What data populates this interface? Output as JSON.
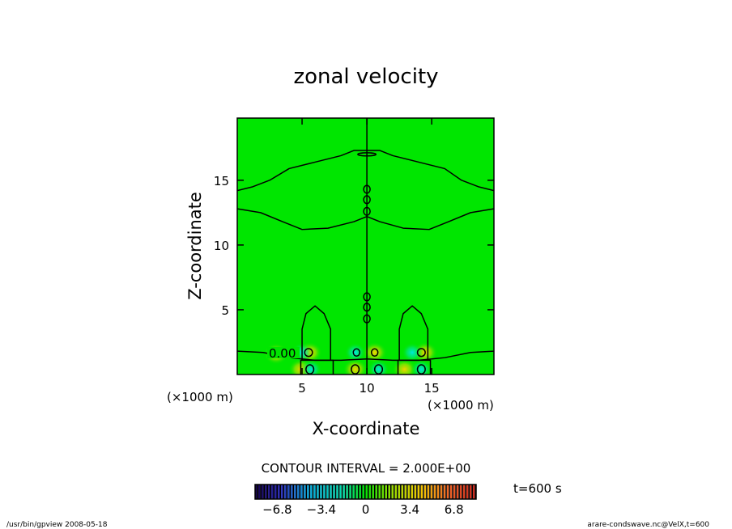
{
  "chart_data": {
    "type": "contour",
    "title": "zonal velocity",
    "xlabel": "X-coordinate",
    "ylabel": "Z-coordinate",
    "x_unit": "(×1000 m)",
    "y_unit": "(×1000 m)",
    "xlim": [
      0,
      19.8
    ],
    "ylim": [
      0,
      19.8
    ],
    "xticks": [
      5,
      10,
      15
    ],
    "yticks": [
      5,
      10,
      15
    ],
    "contour_interval_text": "CONTOUR INTERVAL = 2.000E+00",
    "time_text": "t=600 s",
    "contour_label": "0.00",
    "colorbar": {
      "min": -8.5,
      "max": 8.5,
      "ticks": [
        "−6.8",
        "−3.4",
        "0",
        "3.4",
        "6.8"
      ],
      "tick_values": [
        -6.8,
        -3.4,
        0,
        3.4,
        6.8
      ]
    },
    "zero_contours": [
      {
        "name": "upper-boundary",
        "points": [
          [
            0,
            14.2
          ],
          [
            1.2,
            14.5
          ],
          [
            2.5,
            15.0
          ],
          [
            4.0,
            15.9
          ],
          [
            6.0,
            16.4
          ],
          [
            8.0,
            16.9
          ],
          [
            9.0,
            17.3
          ],
          [
            11.0,
            17.3
          ],
          [
            12.0,
            16.9
          ],
          [
            14.0,
            16.4
          ],
          [
            16.0,
            15.9
          ],
          [
            17.3,
            15.0
          ],
          [
            18.6,
            14.5
          ],
          [
            19.8,
            14.2
          ]
        ]
      },
      {
        "name": "lower-boundary",
        "points": [
          [
            0,
            12.8
          ],
          [
            1.8,
            12.5
          ],
          [
            3.5,
            11.8
          ],
          [
            5.0,
            11.2
          ],
          [
            7.0,
            11.3
          ],
          [
            9.0,
            11.8
          ],
          [
            10.0,
            12.2
          ],
          [
            11.0,
            11.8
          ],
          [
            12.8,
            11.3
          ],
          [
            14.8,
            11.2
          ],
          [
            16.3,
            11.8
          ],
          [
            18.0,
            12.5
          ],
          [
            19.8,
            12.8
          ]
        ]
      },
      {
        "name": "center-line",
        "points": [
          [
            10,
            0
          ],
          [
            10,
            19.8
          ]
        ]
      },
      {
        "name": "bottom-layer",
        "points": [
          [
            0,
            1.8
          ],
          [
            2.0,
            1.7
          ],
          [
            4.0,
            1.3
          ],
          [
            6.0,
            1.1
          ],
          [
            8.0,
            1.1
          ],
          [
            10.0,
            1.2
          ],
          [
            12.0,
            1.1
          ],
          [
            14.0,
            1.1
          ],
          [
            16.0,
            1.3
          ],
          [
            18.0,
            1.7
          ],
          [
            19.8,
            1.8
          ]
        ]
      },
      {
        "name": "left-dome",
        "points": [
          [
            5.0,
            1.1
          ],
          [
            5.0,
            3.5
          ],
          [
            5.3,
            4.7
          ],
          [
            6.0,
            5.3
          ],
          [
            6.7,
            4.7
          ],
          [
            7.2,
            3.5
          ],
          [
            7.2,
            1.1
          ]
        ]
      },
      {
        "name": "right-dome",
        "points": [
          [
            12.5,
            1.1
          ],
          [
            12.5,
            3.5
          ],
          [
            12.8,
            4.7
          ],
          [
            13.5,
            5.3
          ],
          [
            14.2,
            4.7
          ],
          [
            14.7,
            3.5
          ],
          [
            14.7,
            1.1
          ]
        ]
      },
      {
        "name": "left-cell",
        "points": [
          [
            4.9,
            0
          ],
          [
            4.9,
            1.1
          ],
          [
            7.4,
            1.1
          ],
          [
            7.4,
            0
          ]
        ]
      },
      {
        "name": "right-cell",
        "points": [
          [
            12.4,
            0
          ],
          [
            12.4,
            1.1
          ],
          [
            14.9,
            1.1
          ],
          [
            14.9,
            0
          ]
        ]
      }
    ],
    "closed_contours": [
      {
        "x": 10.0,
        "y": 17.0,
        "rx": 0.7,
        "ry": 0.12
      },
      {
        "x": 10.0,
        "y": 14.3,
        "rx": 0.25,
        "ry": 0.3
      },
      {
        "x": 10.0,
        "y": 13.5,
        "rx": 0.25,
        "ry": 0.3
      },
      {
        "x": 10.0,
        "y": 12.6,
        "rx": 0.25,
        "ry": 0.3
      },
      {
        "x": 10.0,
        "y": 6.0,
        "rx": 0.25,
        "ry": 0.3
      },
      {
        "x": 10.0,
        "y": 5.2,
        "rx": 0.25,
        "ry": 0.3
      },
      {
        "x": 10.0,
        "y": 4.3,
        "rx": 0.25,
        "ry": 0.3
      },
      {
        "x": 5.5,
        "y": 1.7,
        "rx": 0.3,
        "ry": 0.3
      },
      {
        "x": 9.2,
        "y": 1.7,
        "rx": 0.25,
        "ry": 0.28
      },
      {
        "x": 10.6,
        "y": 1.7,
        "rx": 0.25,
        "ry": 0.28
      },
      {
        "x": 14.2,
        "y": 1.7,
        "rx": 0.3,
        "ry": 0.3
      },
      {
        "x": 2.8,
        "y": 1.7,
        "rx": 0.2,
        "ry": 0.2
      },
      {
        "x": 9.1,
        "y": 0.4,
        "rx": 0.3,
        "ry": 0.35
      },
      {
        "x": 10.9,
        "y": 0.4,
        "rx": 0.3,
        "ry": 0.35
      },
      {
        "x": 5.6,
        "y": 0.4,
        "rx": 0.3,
        "ry": 0.35
      },
      {
        "x": 14.2,
        "y": 0.4,
        "rx": 0.3,
        "ry": 0.35
      }
    ],
    "positive_spots": [
      [
        5.6,
        1.7
      ],
      [
        10.6,
        1.7
      ],
      [
        14.5,
        1.7
      ],
      [
        4.9,
        0.4
      ],
      [
        9.1,
        0.4
      ],
      [
        12.9,
        0.4
      ],
      [
        3.0,
        1.6
      ]
    ],
    "negative_spots": [
      [
        9.1,
        1.7
      ],
      [
        5.0,
        1.7
      ],
      [
        13.5,
        1.7
      ],
      [
        10.9,
        0.4
      ],
      [
        5.7,
        0.4
      ],
      [
        14.2,
        0.4
      ]
    ]
  },
  "footer": {
    "left_text": "/usr/bin/gpview  2008-05-18",
    "right_text": "arare-condswave.nc@VelX,t=600"
  },
  "colors": {
    "field_background": "#00e600",
    "positive": "#ffd000",
    "negative": "#00e0e0",
    "contour": "#000000"
  }
}
